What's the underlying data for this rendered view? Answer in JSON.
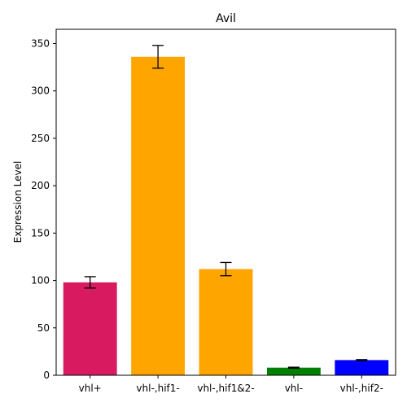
{
  "chart_data": {
    "type": "bar",
    "title": "Avil",
    "xlabel": "",
    "ylabel": "Expression Level",
    "categories": [
      "vhl+",
      "vhl-,hif1-",
      "vhl-,hif1&2-",
      "vhl-",
      "vhl-,hif2-"
    ],
    "values": [
      98,
      336,
      112,
      8,
      16
    ],
    "errors": [
      6,
      12,
      7,
      0.5,
      0.5
    ],
    "colors": [
      "#d81b60",
      "#ffa500",
      "#ffa500",
      "#008000",
      "#0000ff"
    ],
    "ylim": [
      0,
      365
    ],
    "yticks": [
      0,
      50,
      100,
      150,
      200,
      250,
      300,
      350
    ],
    "grid": false,
    "legend": "none"
  }
}
